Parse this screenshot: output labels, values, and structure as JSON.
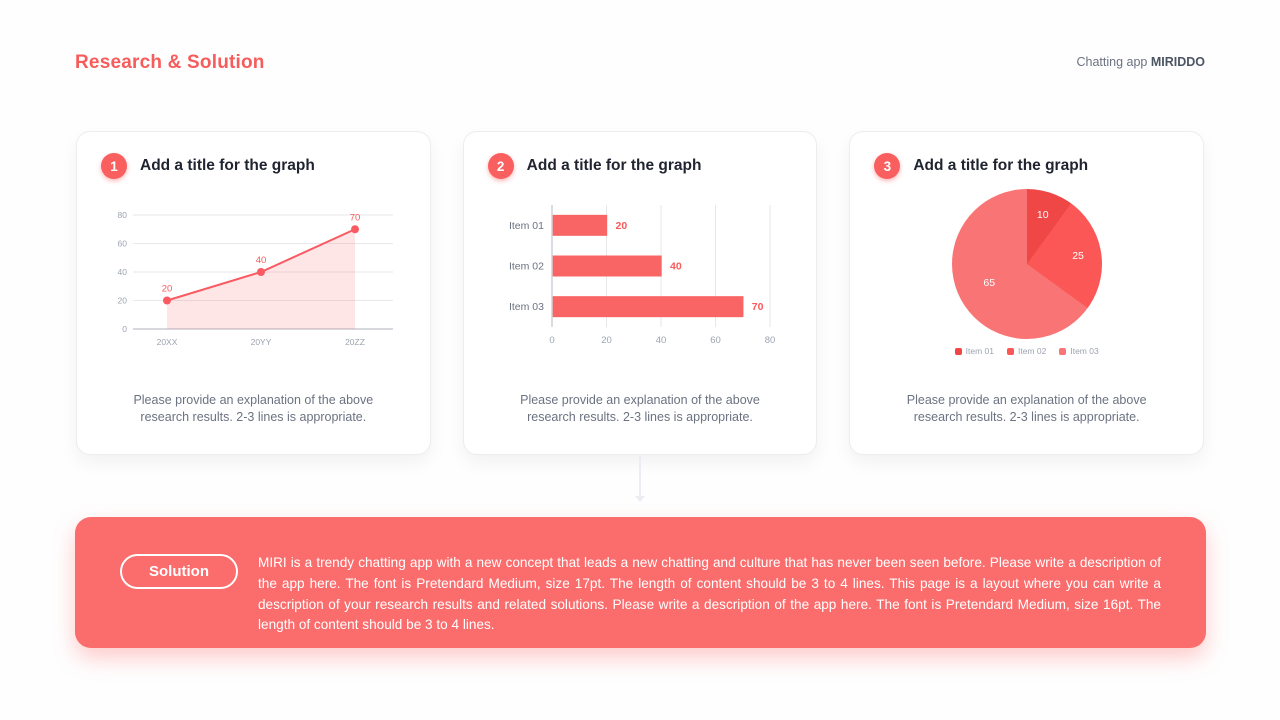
{
  "colors": {
    "accent": "#f75c5c",
    "badge": "#fa5f5f",
    "line": "#fa5a62",
    "area_fill": "rgba(250,101,101,0.16)",
    "bar": "#f96565",
    "value_label": "#fa5a5a",
    "grid": "#e7e7ec",
    "axis": "#c9ccd4",
    "tick_text": "#9ca3af",
    "solution_bg": "#fb6c6c",
    "pie_colors": [
      "#ef4646",
      "#fb5757",
      "#f97474"
    ]
  },
  "header": {
    "title": "Research & Solution",
    "app_label": "Chatting app ",
    "app_name": "MIRIDDO"
  },
  "cards": [
    {
      "number": "1",
      "title": "Add a title for the graph",
      "caption": "Please provide an explanation of the above research results. 2-3 lines is appropriate."
    },
    {
      "number": "2",
      "title": "Add a title for the graph",
      "caption": "Please provide an explanation of the above research results. 2-3 lines is appropriate."
    },
    {
      "number": "3",
      "title": "Add a title for the graph",
      "caption": "Please provide an explanation of the above research results. 2-3 lines is appropriate."
    }
  ],
  "chart_data": [
    {
      "type": "line",
      "categories": [
        "20XX",
        "20YY",
        "20ZZ"
      ],
      "values": [
        20,
        40,
        70
      ],
      "yticks": [
        0,
        20,
        40,
        60,
        80
      ],
      "ylim": [
        0,
        80
      ],
      "title": "",
      "xlabel": "",
      "ylabel": "",
      "grid": "horizontal",
      "area": true,
      "point_labels": [
        "20",
        "40",
        "70"
      ]
    },
    {
      "type": "bar",
      "orientation": "horizontal",
      "categories": [
        "Item 01",
        "Item 02",
        "Item 03"
      ],
      "values": [
        20,
        40,
        70
      ],
      "xticks": [
        0,
        20,
        40,
        60,
        80
      ],
      "xlim": [
        0,
        80
      ],
      "title": "",
      "xlabel": "",
      "ylabel": "",
      "grid": "vertical",
      "value_labels": [
        "20",
        "40",
        "70"
      ]
    },
    {
      "type": "pie",
      "categories": [
        "Item 01",
        "Item 02",
        "Item 03"
      ],
      "values": [
        10,
        25,
        65
      ],
      "slice_labels": [
        "10",
        "25",
        "65"
      ],
      "start_angle_deg": 0,
      "direction": "clockwise",
      "legend_position": "bottom",
      "title": ""
    }
  ],
  "solution": {
    "label": "Solution",
    "text": "MIRI is a trendy chatting app with a new concept that leads a new chatting and culture that has never been seen before. Please write a description of the app here. The font is Pretendard Medium, size 17pt. The length of content should be 3 to 4 lines. This page is a layout where you can write a description of your research results and related solutions. Please write a description of the app here. The font is Pretendard Medium, size 16pt. The length of content should be 3 to 4 lines."
  }
}
